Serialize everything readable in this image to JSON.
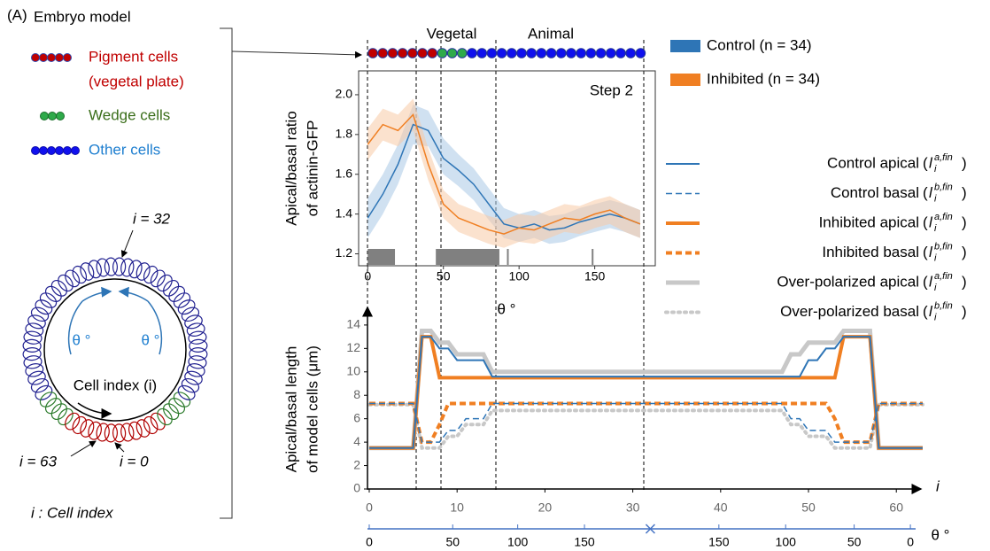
{
  "panel_label": "(A)",
  "embryo_model": {
    "title": "Embryo model",
    "pigment": [
      "Pigment cells",
      "(vegetal plate)"
    ],
    "wedge": "Wedge cells",
    "other": "Other cells",
    "i_top": "i = 32",
    "theta_left": "θ °",
    "theta_right": "θ °",
    "cell_index": "Cell index (i)",
    "i_last": "i = 63",
    "i_first": "i = 0",
    "caption": "i : Cell index"
  },
  "chart_data": [
    {
      "type": "line",
      "annotation": "Step 2",
      "regions": [
        "Vegetal",
        "Animal"
      ],
      "x_label": "θ °",
      "y_label": [
        "Apical/basal ratio",
        "of actinin-GFP"
      ],
      "x": [
        0,
        10,
        20,
        30,
        40,
        50,
        60,
        70,
        80,
        90,
        100,
        110,
        120,
        130,
        140,
        150,
        160,
        170,
        180
      ],
      "series": [
        {
          "name": "Control (n = 34)",
          "color": "#2e75b6",
          "band_color": "#a9c8e6",
          "values": [
            1.38,
            1.5,
            1.65,
            1.85,
            1.82,
            1.68,
            1.62,
            1.55,
            1.45,
            1.35,
            1.33,
            1.35,
            1.32,
            1.33,
            1.36,
            1.38,
            1.4,
            1.38,
            1.35
          ],
          "lower": [
            1.28,
            1.4,
            1.55,
            1.75,
            1.74,
            1.6,
            1.54,
            1.47,
            1.37,
            1.28,
            1.26,
            1.28,
            1.25,
            1.26,
            1.29,
            1.31,
            1.33,
            1.31,
            1.28
          ],
          "upper": [
            1.48,
            1.6,
            1.75,
            1.95,
            1.92,
            1.78,
            1.7,
            1.63,
            1.53,
            1.43,
            1.4,
            1.42,
            1.39,
            1.4,
            1.43,
            1.45,
            1.47,
            1.45,
            1.42
          ]
        },
        {
          "name": "Inhibited (n = 34)",
          "color": "#f07f22",
          "band_color": "#f8cba6",
          "values": [
            1.75,
            1.85,
            1.82,
            1.9,
            1.65,
            1.45,
            1.38,
            1.35,
            1.32,
            1.3,
            1.33,
            1.32,
            1.35,
            1.38,
            1.37,
            1.4,
            1.42,
            1.38,
            1.35
          ],
          "lower": [
            1.67,
            1.77,
            1.74,
            1.82,
            1.57,
            1.38,
            1.31,
            1.28,
            1.25,
            1.23,
            1.26,
            1.25,
            1.28,
            1.31,
            1.3,
            1.33,
            1.35,
            1.31,
            1.28
          ],
          "upper": [
            1.83,
            1.93,
            1.9,
            1.98,
            1.73,
            1.52,
            1.45,
            1.42,
            1.39,
            1.37,
            1.4,
            1.39,
            1.42,
            1.45,
            1.44,
            1.47,
            1.49,
            1.45,
            1.42
          ]
        }
      ],
      "significance_bars": [
        [
          0,
          18
        ],
        [
          45,
          87
        ],
        [
          92,
          93
        ],
        [
          148,
          149
        ]
      ],
      "xlim": [
        -6,
        190
      ],
      "ylim": [
        1.14,
        2.12
      ],
      "xticks": [
        0,
        50,
        100,
        150
      ],
      "yticks": [
        1.2,
        1.4,
        1.6,
        1.8,
        {
          "value": 2,
          "label": "2.0"
        }
      ]
    },
    {
      "type": "line",
      "x_label": "i",
      "x2_label": "θ °",
      "y_label": [
        "Apical/basal length",
        "of model cells (μm)"
      ],
      "x": [
        0,
        1,
        2,
        3,
        4,
        5,
        6,
        7,
        8,
        9,
        10,
        11,
        12,
        13,
        14,
        15,
        16,
        17,
        18,
        19,
        20,
        21,
        22,
        23,
        24,
        25,
        26,
        27,
        28,
        29,
        30,
        31,
        32,
        33,
        34,
        35,
        36,
        37,
        38,
        39,
        40,
        41,
        42,
        43,
        44,
        45,
        46,
        47,
        48,
        49,
        50,
        51,
        52,
        53,
        54,
        55,
        56,
        57,
        58,
        59,
        60,
        61,
        62,
        63
      ],
      "series": [
        {
          "name": "Control apical",
          "notation": {
            "open": "(",
            "base": "l",
            "sub": "i",
            "sup": "a,fin",
            "close": ")"
          },
          "color": "#2e75b6",
          "style": "solid",
          "width": 2,
          "values": [
            3.5,
            3.5,
            3.5,
            3.5,
            3.5,
            3.5,
            13,
            13,
            12,
            12,
            11,
            11,
            11,
            11,
            9.6,
            9.6,
            9.6,
            9.6,
            9.6,
            9.6,
            9.6,
            9.6,
            9.6,
            9.6,
            9.6,
            9.6,
            9.6,
            9.6,
            9.6,
            9.6,
            9.6,
            9.6,
            9.6,
            9.6,
            9.6,
            9.6,
            9.6,
            9.6,
            9.6,
            9.6,
            9.6,
            9.6,
            9.6,
            9.6,
            9.6,
            9.6,
            9.6,
            9.6,
            9.6,
            9.6,
            11,
            11,
            12,
            12,
            13,
            13,
            13,
            13,
            3.5,
            3.5,
            3.5,
            3.5,
            3.5,
            3.5
          ]
        },
        {
          "name": "Control basal",
          "notation": {
            "open": "(",
            "base": "l",
            "sub": "i",
            "sup": "b,fin",
            "close": ")"
          },
          "color": "#2e75b6",
          "style": "dashed",
          "width": 1.5,
          "values": [
            7.3,
            7.3,
            7.3,
            7.3,
            7.3,
            7.3,
            4,
            4,
            4,
            5,
            5,
            6,
            6,
            6,
            7.3,
            7.3,
            7.3,
            7.3,
            7.3,
            7.3,
            7.3,
            7.3,
            7.3,
            7.3,
            7.3,
            7.3,
            7.3,
            7.3,
            7.3,
            7.3,
            7.3,
            7.3,
            7.3,
            7.3,
            7.3,
            7.3,
            7.3,
            7.3,
            7.3,
            7.3,
            7.3,
            7.3,
            7.3,
            7.3,
            7.3,
            7.3,
            7.3,
            7.3,
            6,
            6,
            5,
            5,
            5,
            4,
            4,
            4,
            4,
            4,
            7.3,
            7.3,
            7.3,
            7.3,
            7.3,
            7.3
          ]
        },
        {
          "name": "Inhibited apical",
          "notation": {
            "open": "(",
            "base": "l",
            "sub": "i",
            "sup": "a,fin",
            "close": ")"
          },
          "color": "#f07f22",
          "style": "solid",
          "width": 4,
          "values": [
            3.5,
            3.5,
            3.5,
            3.5,
            3.5,
            3.5,
            13,
            13,
            9.5,
            9.5,
            9.5,
            9.5,
            9.5,
            9.5,
            9.5,
            9.5,
            9.5,
            9.5,
            9.5,
            9.5,
            9.5,
            9.5,
            9.5,
            9.5,
            9.5,
            9.5,
            9.5,
            9.5,
            9.5,
            9.5,
            9.5,
            9.5,
            9.5,
            9.5,
            9.5,
            9.5,
            9.5,
            9.5,
            9.5,
            9.5,
            9.5,
            9.5,
            9.5,
            9.5,
            9.5,
            9.5,
            9.5,
            9.5,
            9.5,
            9.5,
            9.5,
            9.5,
            9.5,
            9.5,
            13,
            13,
            13,
            13,
            3.5,
            3.5,
            3.5,
            3.5,
            3.5,
            3.5
          ]
        },
        {
          "name": "Inhibited basal",
          "notation": {
            "open": "(",
            "base": "l",
            "sub": "i",
            "sup": "b,fin",
            "close": ")"
          },
          "color": "#f07f22",
          "style": "dashed",
          "width": 4,
          "values": [
            7.3,
            7.3,
            7.3,
            7.3,
            7.3,
            7.3,
            4,
            4,
            5.5,
            7.3,
            7.3,
            7.3,
            7.3,
            7.3,
            7.3,
            7.3,
            7.3,
            7.3,
            7.3,
            7.3,
            7.3,
            7.3,
            7.3,
            7.3,
            7.3,
            7.3,
            7.3,
            7.3,
            7.3,
            7.3,
            7.3,
            7.3,
            7.3,
            7.3,
            7.3,
            7.3,
            7.3,
            7.3,
            7.3,
            7.3,
            7.3,
            7.3,
            7.3,
            7.3,
            7.3,
            7.3,
            7.3,
            7.3,
            7.3,
            7.3,
            7.3,
            7.3,
            7.3,
            6,
            4,
            4,
            4,
            4,
            7.3,
            7.3,
            7.3,
            7.3,
            7.3,
            7.3
          ]
        },
        {
          "name": "Over-polarized apical",
          "notation": {
            "open": "(",
            "base": "l",
            "sub": "i",
            "sup": "a,fin",
            "close": ")"
          },
          "color": "#c8c8c8",
          "style": "solid",
          "width": 5,
          "values": [
            3.5,
            3.5,
            3.5,
            3.5,
            3.5,
            3.5,
            13.5,
            13.5,
            12.5,
            12.5,
            11.5,
            11.5,
            11.5,
            11.5,
            10,
            10,
            10,
            10,
            10,
            10,
            10,
            10,
            10,
            10,
            10,
            10,
            10,
            10,
            10,
            10,
            10,
            10,
            10,
            10,
            10,
            10,
            10,
            10,
            10,
            10,
            10,
            10,
            10,
            10,
            10,
            10,
            10,
            10,
            11.5,
            11.5,
            12.5,
            12.5,
            12.5,
            12.5,
            13.5,
            13.5,
            13.5,
            13.5,
            3.5,
            3.5,
            3.5,
            3.5,
            3.5,
            3.5
          ]
        },
        {
          "name": "Over-polarized basal",
          "notation": {
            "open": "(",
            "base": "l",
            "sub": "i",
            "sup": "b,fin",
            "close": ")"
          },
          "color": "#c8c8c8",
          "style": "dotted",
          "width": 4,
          "values": [
            7.2,
            7.2,
            7.2,
            7.2,
            7.2,
            7.2,
            3.5,
            3.5,
            3.5,
            4.5,
            4.5,
            5.5,
            5.5,
            5.5,
            6.7,
            6.7,
            6.7,
            6.7,
            6.7,
            6.7,
            6.7,
            6.7,
            6.7,
            6.7,
            6.7,
            6.7,
            6.7,
            6.7,
            6.7,
            6.7,
            6.7,
            6.7,
            6.7,
            6.7,
            6.7,
            6.7,
            6.7,
            6.7,
            6.7,
            6.7,
            6.7,
            6.7,
            6.7,
            6.7,
            6.7,
            6.7,
            6.7,
            6.7,
            5.5,
            5.5,
            4.5,
            4.5,
            4.5,
            3.5,
            3.5,
            3.5,
            3.5,
            3.5,
            7.2,
            7.2,
            7.2,
            7.2,
            7.2,
            7.2
          ]
        }
      ],
      "xlim": [
        -0.2,
        62.8
      ],
      "ylim": [
        0,
        14.9
      ],
      "xticks": [
        0,
        10,
        20,
        30,
        40,
        50,
        60
      ],
      "yticks": [
        0,
        2,
        4,
        6,
        8,
        10,
        12,
        14
      ],
      "x2ticks": [
        {
          "value": 0,
          "label": "0"
        },
        {
          "value": 9.5,
          "label": "50"
        },
        {
          "value": 16.9,
          "label": "100"
        },
        {
          "value": 24.5,
          "label": "150"
        },
        {
          "value": 39.8,
          "label": "150"
        },
        {
          "value": 47.4,
          "label": "100"
        },
        {
          "value": 55.2,
          "label": "50"
        },
        {
          "value": 61.6,
          "label": "0"
        }
      ]
    }
  ]
}
